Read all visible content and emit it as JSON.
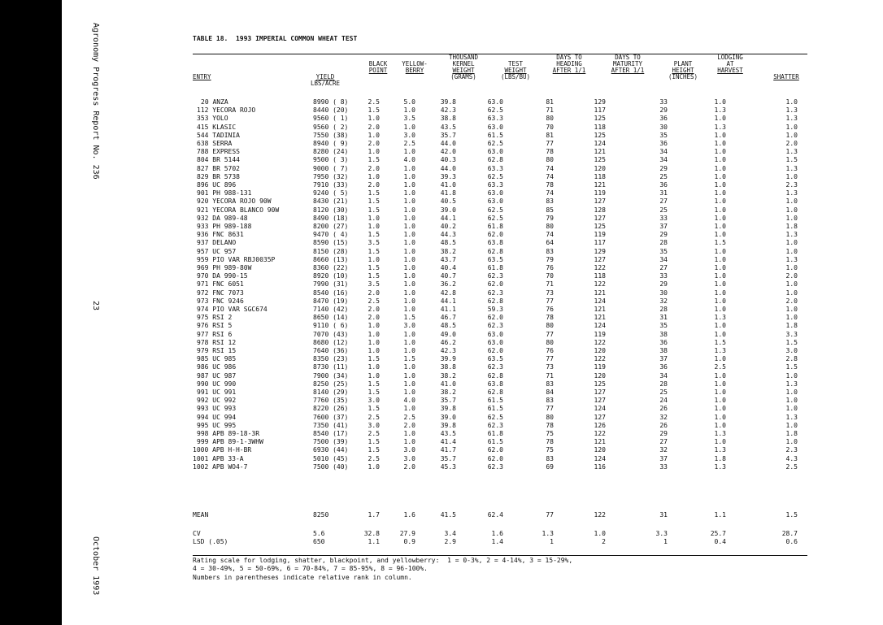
{
  "side_labels": {
    "report": "Agronomy Progress Report No. 236",
    "page": "23",
    "date": "October 1993"
  },
  "title": "TABLE 18.  1993 IMPERIAL COMMON WHEAT TEST",
  "headers": {
    "entry": "ENTRY",
    "yield": [
      "YIELD",
      "LBS/ACRE"
    ],
    "black_point": [
      "BLACK",
      "POINT"
    ],
    "yellow_berry": [
      "YELLOW-",
      "BERRY"
    ],
    "tkw": [
      "THOUSAND",
      "KERNEL",
      "WEIGHT",
      "(GRAMS)"
    ],
    "test_weight": [
      "TEST",
      "WEIGHT",
      "(LBS/BU)"
    ],
    "days_heading": [
      "DAYS TO",
      "HEADING",
      "AFTER 1/1"
    ],
    "days_maturity": [
      "DAYS TO",
      "MATURITY",
      "AFTER 1/1"
    ],
    "plant_height": [
      "PLANT",
      "HEIGHT",
      "(INCHES)"
    ],
    "lodging": [
      "LODGING",
      "AT",
      "HARVEST"
    ],
    "shatter": "SHATTER"
  },
  "rows": [
    [
      "20 ANZA",
      "8990 ( 8)",
      "2.5",
      "5.0",
      "39.8",
      "63.0",
      "81",
      "129",
      "33",
      "1.0",
      "1.0"
    ],
    [
      "112 YECORA ROJO",
      "8440 (20)",
      "1.5",
      "1.0",
      "42.3",
      "62.5",
      "71",
      "117",
      "29",
      "1.3",
      "1.3"
    ],
    [
      "353 YOLO",
      "9560 ( 1)",
      "1.0",
      "3.5",
      "38.8",
      "63.3",
      "80",
      "125",
      "36",
      "1.0",
      "1.3"
    ],
    [
      "415 KLASIC",
      "9560 ( 2)",
      "2.0",
      "1.0",
      "43.5",
      "63.0",
      "70",
      "118",
      "30",
      "1.3",
      "1.0"
    ],
    [
      "544 TADINIA",
      "7550 (38)",
      "1.0",
      "3.0",
      "35.7",
      "61.5",
      "81",
      "125",
      "35",
      "1.0",
      "1.0"
    ],
    [
      "638 SERRA",
      "8940 ( 9)",
      "2.0",
      "2.5",
      "44.0",
      "62.5",
      "77",
      "124",
      "36",
      "1.0",
      "2.0"
    ],
    [
      "788 EXPRESS",
      "8280 (24)",
      "1.0",
      "1.0",
      "42.0",
      "63.0",
      "78",
      "121",
      "34",
      "1.0",
      "1.3"
    ],
    [
      "804 BR 5144",
      "9500 ( 3)",
      "1.5",
      "4.0",
      "40.3",
      "62.8",
      "80",
      "125",
      "34",
      "1.0",
      "1.5"
    ],
    [
      "827 BR 5702",
      "9000 ( 7)",
      "2.0",
      "1.0",
      "44.0",
      "63.3",
      "74",
      "120",
      "29",
      "1.0",
      "1.3"
    ],
    [
      "829 BR 5738",
      "7950 (32)",
      "1.0",
      "1.0",
      "39.3",
      "62.5",
      "74",
      "118",
      "25",
      "1.0",
      "1.0"
    ],
    [
      "896 UC 896",
      "7910 (33)",
      "2.0",
      "1.0",
      "41.0",
      "63.3",
      "78",
      "121",
      "36",
      "1.0",
      "2.3"
    ],
    [
      "901 PH 988-131",
      "9240 ( 5)",
      "1.5",
      "1.0",
      "41.8",
      "63.0",
      "74",
      "119",
      "31",
      "1.0",
      "1.3"
    ],
    [
      "920 YECORA ROJO 90W",
      "8430 (21)",
      "1.5",
      "1.0",
      "40.5",
      "63.0",
      "83",
      "127",
      "27",
      "1.0",
      "1.0"
    ],
    [
      "921 YECORA BLANCO 90W",
      "8120 (30)",
      "1.5",
      "1.0",
      "39.0",
      "62.5",
      "85",
      "128",
      "25",
      "1.0",
      "1.0"
    ],
    [
      "932 DA 989-48",
      "8490 (18)",
      "1.0",
      "1.0",
      "44.1",
      "62.5",
      "79",
      "127",
      "33",
      "1.0",
      "1.0"
    ],
    [
      "933 PH 989-188",
      "8200 (27)",
      "1.0",
      "1.0",
      "40.2",
      "61.8",
      "80",
      "125",
      "37",
      "1.0",
      "1.8"
    ],
    [
      "936 FNC 8631",
      "9470 ( 4)",
      "1.5",
      "1.0",
      "44.3",
      "62.0",
      "74",
      "119",
      "29",
      "1.0",
      "1.3"
    ],
    [
      "937 DELANO",
      "8590 (15)",
      "3.5",
      "1.0",
      "48.5",
      "63.8",
      "64",
      "117",
      "28",
      "1.5",
      "1.0"
    ],
    [
      "957 UC 957",
      "8150 (28)",
      "1.5",
      "1.0",
      "38.2",
      "62.8",
      "83",
      "129",
      "35",
      "1.0",
      "1.0"
    ],
    [
      "959 PIO VAR RBJ0035P",
      "8660 (13)",
      "1.0",
      "1.0",
      "43.7",
      "63.5",
      "79",
      "127",
      "34",
      "1.0",
      "1.3"
    ],
    [
      "969 PH 989-80W",
      "8360 (22)",
      "1.5",
      "1.0",
      "40.4",
      "61.8",
      "76",
      "122",
      "27",
      "1.0",
      "1.0"
    ],
    [
      "970 DA 990-15",
      "8920 (10)",
      "1.5",
      "1.0",
      "40.7",
      "62.3",
      "70",
      "118",
      "33",
      "1.0",
      "2.0"
    ],
    [
      "971 FNC 6051",
      "7990 (31)",
      "3.5",
      "1.0",
      "36.2",
      "62.0",
      "71",
      "122",
      "29",
      "1.0",
      "1.0"
    ],
    [
      "972 FNC 7073",
      "8540 (16)",
      "2.0",
      "1.0",
      "42.8",
      "62.3",
      "73",
      "121",
      "30",
      "1.0",
      "1.0"
    ],
    [
      "973 FNC 9246",
      "8470 (19)",
      "2.5",
      "1.0",
      "44.1",
      "62.8",
      "77",
      "124",
      "32",
      "1.0",
      "2.0"
    ],
    [
      "974 PIO VAR SGC674",
      "7140 (42)",
      "2.0",
      "1.0",
      "41.1",
      "59.3",
      "76",
      "121",
      "28",
      "1.0",
      "1.0"
    ],
    [
      "975 RSI 2",
      "8650 (14)",
      "2.0",
      "1.5",
      "46.7",
      "62.0",
      "78",
      "121",
      "31",
      "1.3",
      "1.0"
    ],
    [
      "976 RSI 5",
      "9110 ( 6)",
      "1.0",
      "3.0",
      "48.5",
      "62.3",
      "80",
      "124",
      "35",
      "1.0",
      "1.8"
    ],
    [
      "977 RSI 6",
      "7070 (43)",
      "1.0",
      "1.0",
      "49.0",
      "63.0",
      "77",
      "119",
      "38",
      "1.0",
      "3.3"
    ],
    [
      "978 RSI 12",
      "8680 (12)",
      "1.0",
      "1.0",
      "46.2",
      "63.0",
      "80",
      "122",
      "36",
      "1.5",
      "1.5"
    ],
    [
      "979 RSI 15",
      "7640 (36)",
      "1.0",
      "1.0",
      "42.3",
      "62.0",
      "76",
      "120",
      "38",
      "1.3",
      "3.0"
    ],
    [
      "985 UC 985",
      "8350 (23)",
      "1.5",
      "1.5",
      "39.9",
      "63.5",
      "77",
      "122",
      "37",
      "1.0",
      "2.8"
    ],
    [
      "986 UC 986",
      "8730 (11)",
      "1.0",
      "1.0",
      "38.8",
      "62.3",
      "73",
      "119",
      "36",
      "2.5",
      "1.5"
    ],
    [
      "987 UC 987",
      "7900 (34)",
      "1.0",
      "1.0",
      "38.2",
      "62.8",
      "71",
      "120",
      "34",
      "1.0",
      "1.0"
    ],
    [
      "990 UC 990",
      "8250 (25)",
      "1.5",
      "1.0",
      "41.0",
      "63.8",
      "83",
      "125",
      "28",
      "1.0",
      "1.3"
    ],
    [
      "991 UC 991",
      "8140 (29)",
      "1.5",
      "1.0",
      "38.2",
      "62.8",
      "84",
      "127",
      "25",
      "1.0",
      "1.0"
    ],
    [
      "992 UC 992",
      "7760 (35)",
      "3.0",
      "4.0",
      "35.7",
      "61.5",
      "83",
      "127",
      "24",
      "1.0",
      "1.0"
    ],
    [
      "993 UC 993",
      "8220 (26)",
      "1.5",
      "1.0",
      "39.8",
      "61.5",
      "77",
      "124",
      "26",
      "1.0",
      "1.0"
    ],
    [
      "994 UC 994",
      "7600 (37)",
      "2.5",
      "2.5",
      "39.0",
      "62.5",
      "80",
      "127",
      "32",
      "1.0",
      "1.3"
    ],
    [
      "995 UC 995",
      "7350 (41)",
      "3.0",
      "2.0",
      "39.8",
      "62.3",
      "78",
      "126",
      "26",
      "1.0",
      "1.0"
    ],
    [
      "998 APB 89-18-3R",
      "8540 (17)",
      "2.5",
      "1.0",
      "43.5",
      "61.8",
      "75",
      "122",
      "29",
      "1.3",
      "1.8"
    ],
    [
      "999 APB 89-1-3WHW",
      "7500 (39)",
      "1.5",
      "1.0",
      "41.4",
      "61.5",
      "78",
      "121",
      "27",
      "1.0",
      "1.0"
    ],
    [
      "1000 APB H-H-BR",
      "6930 (44)",
      "1.5",
      "3.0",
      "41.7",
      "62.0",
      "75",
      "120",
      "32",
      "1.3",
      "2.3"
    ],
    [
      "1001 APB 33-A",
      "5010 (45)",
      "2.5",
      "3.0",
      "35.7",
      "62.0",
      "83",
      "124",
      "37",
      "1.8",
      "4.3"
    ],
    [
      "1002 APB WO4-7",
      "7500 (40)",
      "1.0",
      "2.0",
      "45.3",
      "62.3",
      "69",
      "116",
      "33",
      "1.3",
      "2.5"
    ]
  ],
  "summary": [
    [
      "MEAN",
      "8250",
      "1.7",
      "1.6",
      "41.5",
      "62.4",
      "77",
      "122",
      "31",
      "1.1",
      "1.5"
    ],
    [
      "CV",
      "5.6",
      "32.8",
      "27.9",
      "3.4",
      "1.6",
      "1.3",
      "1.0",
      "3.3",
      "25.7",
      "28.7"
    ],
    [
      "LSD (.05)",
      "650",
      "1.1",
      "0.9",
      "2.9",
      "1.4",
      "1",
      "2",
      "1",
      "0.4",
      "0.6"
    ]
  ],
  "footnotes": [
    "Rating scale for lodging, shatter, blackpoint, and yellowberry:  1 = 0-3%, 2 = 4-14%, 3 = 15-29%,",
    "4 = 30-49%, 5 = 50-69%, 6 = 70-84%, 7 = 85-95%, 8 = 96-100%.",
    "Numbers in parentheses indicate relative rank in column."
  ]
}
